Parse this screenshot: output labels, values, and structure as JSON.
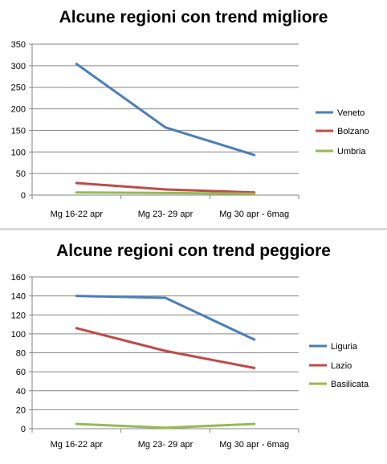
{
  "chart_data": [
    {
      "type": "line",
      "title": "Alcune regioni con trend migliore",
      "categories": [
        "Mg 16-22 apr",
        "Mg 23- 29 apr",
        "Mg 30 apr  - 6mag"
      ],
      "ylim": [
        0,
        350
      ],
      "yticks": [
        0,
        50,
        100,
        150,
        200,
        250,
        300,
        350
      ],
      "grid": true,
      "legend_position": "right",
      "series": [
        {
          "name": "Veneto",
          "color": "#4a7ebb",
          "values": [
            304,
            157,
            93
          ]
        },
        {
          "name": "Bolzano",
          "color": "#be4b48",
          "values": [
            28,
            13,
            6
          ]
        },
        {
          "name": "Umbria",
          "color": "#98b954",
          "values": [
            6,
            5,
            3
          ]
        }
      ]
    },
    {
      "type": "line",
      "title": "Alcune regioni con trend peggiore",
      "categories": [
        "Mg 16-22 apr",
        "Mg 23- 29 apr",
        "Mg 30 apr  - 6mag"
      ],
      "ylim": [
        0,
        160
      ],
      "yticks": [
        0,
        20,
        40,
        60,
        80,
        100,
        120,
        140,
        160
      ],
      "grid": true,
      "legend_position": "right",
      "series": [
        {
          "name": "Liguria",
          "color": "#4a7ebb",
          "values": [
            140,
            138,
            94
          ]
        },
        {
          "name": "Lazio",
          "color": "#be4b48",
          "values": [
            106,
            82,
            64
          ]
        },
        {
          "name": "Basilicata",
          "color": "#98b954",
          "values": [
            5,
            1,
            5
          ]
        }
      ]
    }
  ]
}
